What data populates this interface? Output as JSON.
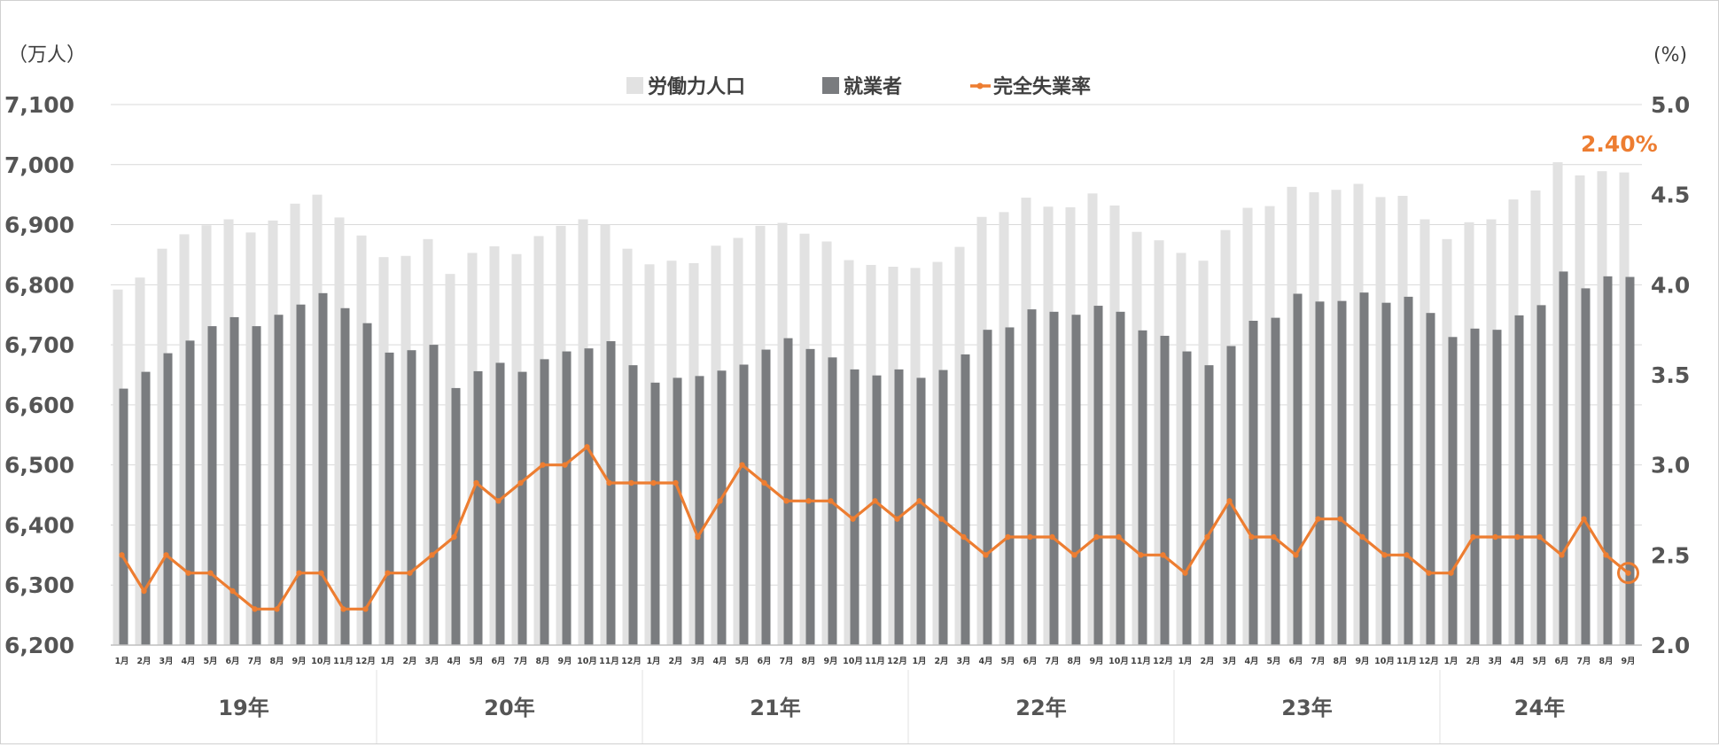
{
  "chart_data": {
    "type": "bar",
    "left_axis": {
      "unit_label": "（万人）",
      "ylim": [
        6200,
        7100
      ],
      "ticks": [
        "6,200",
        "6,300",
        "6,400",
        "6,500",
        "6,600",
        "6,700",
        "6,800",
        "6,900",
        "7,000",
        "7,100"
      ]
    },
    "right_axis": {
      "unit_label": "(%)",
      "ylim": [
        2.0,
        5.0
      ],
      "ticks": [
        "2.0",
        "2.5",
        "3.0",
        "3.5",
        "4.0",
        "4.5",
        "5.0"
      ]
    },
    "legend": [
      {
        "label": "労働力人口",
        "kind": "bar",
        "color": "#E2E2E2"
      },
      {
        "label": "就業者",
        "kind": "bar",
        "color": "#7A7C7F"
      },
      {
        "label": "完全失業率",
        "kind": "line",
        "color": "#ED7D31"
      }
    ],
    "years": [
      "19年",
      "20年",
      "21年",
      "22年",
      "23年",
      "24年"
    ],
    "month_labels": [
      "1月",
      "2月",
      "3月",
      "4月",
      "5月",
      "6月",
      "7月",
      "8月",
      "9月",
      "10月",
      "11月",
      "12月"
    ],
    "series": [
      {
        "name": "労働力人口",
        "axis": "left",
        "values": [
          6792,
          6812,
          6860,
          6884,
          6899,
          6909,
          6887,
          6907,
          6935,
          6950,
          6912,
          6882,
          6846,
          6848,
          6876,
          6818,
          6853,
          6864,
          6851,
          6881,
          6898,
          6909,
          6900,
          6860,
          6834,
          6840,
          6836,
          6865,
          6878,
          6898,
          6903,
          6885,
          6872,
          6841,
          6833,
          6830,
          6828,
          6838,
          6863,
          6913,
          6921,
          6945,
          6930,
          6929,
          6952,
          6932,
          6888,
          6874,
          6853,
          6840,
          6891,
          6928,
          6931,
          6963,
          6954,
          6958,
          6968,
          6946,
          6948,
          6909,
          6876,
          6904,
          6909,
          6942,
          6957,
          7004,
          6982,
          6989,
          6987
        ]
      },
      {
        "name": "就業者",
        "axis": "left",
        "values": [
          6627,
          6655,
          6686,
          6707,
          6731,
          6746,
          6731,
          6750,
          6767,
          6786,
          6761,
          6736,
          6687,
          6691,
          6700,
          6628,
          6656,
          6670,
          6655,
          6676,
          6689,
          6694,
          6706,
          6666,
          6637,
          6645,
          6648,
          6657,
          6667,
          6692,
          6711,
          6693,
          6679,
          6659,
          6649,
          6659,
          6645,
          6658,
          6684,
          6725,
          6729,
          6759,
          6755,
          6750,
          6765,
          6755,
          6724,
          6715,
          6689,
          6666,
          6698,
          6740,
          6745,
          6785,
          6772,
          6773,
          6787,
          6770,
          6780,
          6753,
          6713,
          6727,
          6725,
          6749,
          6766,
          6822,
          6794,
          6814,
          6813
        ]
      },
      {
        "name": "完全失業率",
        "axis": "right",
        "type": "line",
        "values": [
          2.5,
          2.3,
          2.5,
          2.4,
          2.4,
          2.3,
          2.2,
          2.2,
          2.4,
          2.4,
          2.2,
          2.2,
          2.4,
          2.4,
          2.5,
          2.6,
          2.9,
          2.8,
          2.9,
          3.0,
          3.0,
          3.1,
          2.9,
          2.9,
          2.9,
          2.9,
          2.6,
          2.8,
          3.0,
          2.9,
          2.8,
          2.8,
          2.8,
          2.7,
          2.8,
          2.7,
          2.8,
          2.7,
          2.6,
          2.5,
          2.6,
          2.6,
          2.6,
          2.5,
          2.6,
          2.6,
          2.5,
          2.5,
          2.4,
          2.6,
          2.8,
          2.6,
          2.6,
          2.5,
          2.7,
          2.7,
          2.6,
          2.5,
          2.5,
          2.4,
          2.4,
          2.6,
          2.6,
          2.6,
          2.6,
          2.5,
          2.7,
          2.5,
          2.4
        ]
      }
    ],
    "annotation": {
      "label": "2.40%",
      "index": 68
    }
  }
}
